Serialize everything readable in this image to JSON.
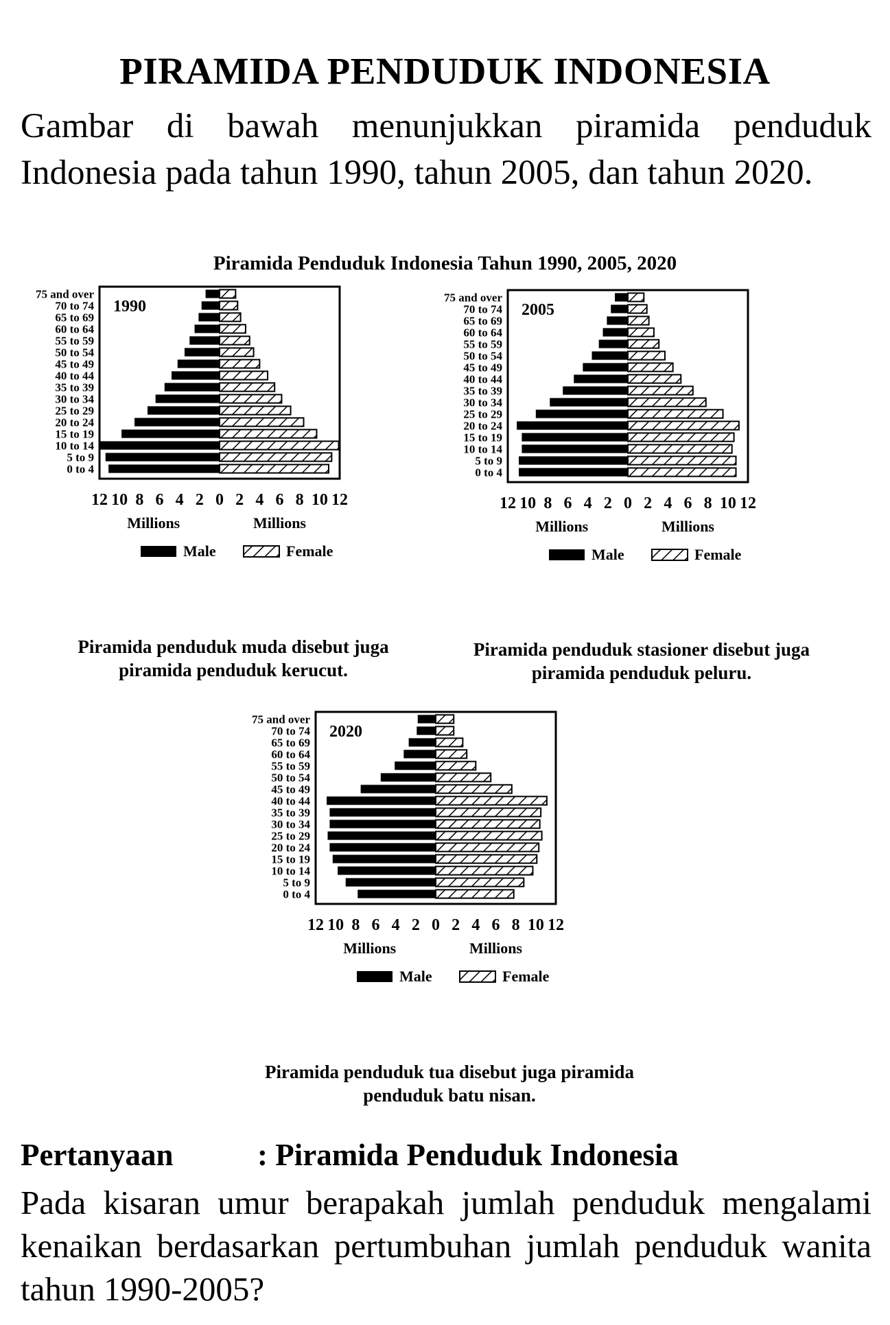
{
  "header": {
    "title": "PIRAMIDA PENDUDUK INDONESIA",
    "intro": "Gambar di bawah menunjukkan piramida penduduk Indonesia pada tahun 1990, tahun 2005, dan tahun 2020."
  },
  "figure": {
    "title": "Piramida Penduduk Indonesia Tahun 1990, 2005, 2020"
  },
  "colors": {
    "male": "#000000",
    "female_pattern": "hatched",
    "frame": "#000000"
  },
  "chart_data": [
    {
      "type": "bar",
      "orientation": "horizontal-pyramid",
      "title": "1990",
      "categories": [
        "0 to 4",
        "5 to 9",
        "10 to 14",
        "15 to 19",
        "20 to 24",
        "25 to 29",
        "30 to 34",
        "35 to 39",
        "40 to 44",
        "45 to 49",
        "50 to 54",
        "55 to 59",
        "60 to 64",
        "65 to 69",
        "70 to 74",
        "75 and over"
      ],
      "series": [
        {
          "name": "Male",
          "values": [
            11.1,
            11.4,
            11.9,
            9.8,
            8.5,
            7.2,
            6.4,
            5.5,
            4.8,
            4.2,
            3.5,
            3.0,
            2.5,
            2.1,
            1.8,
            1.4
          ]
        },
        {
          "name": "Female",
          "values": [
            10.9,
            11.2,
            11.9,
            9.7,
            8.4,
            7.1,
            6.2,
            5.5,
            4.8,
            4.0,
            3.4,
            3.0,
            2.6,
            2.1,
            1.8,
            1.6
          ]
        }
      ],
      "xticks": [
        "12",
        "10",
        "8",
        "6",
        "4",
        "2",
        "0",
        "2",
        "4",
        "6",
        "8",
        "10",
        "12"
      ],
      "xlabel_left": "Millions",
      "xlabel_right": "Millions",
      "xlim": [
        -12,
        12
      ],
      "legend": [
        "Male",
        "Female"
      ],
      "caption": "Piramida penduduk muda disebut juga piramida penduduk kerucut."
    },
    {
      "type": "bar",
      "orientation": "horizontal-pyramid",
      "title": "2005",
      "categories": [
        "0 to 4",
        "5 to 9",
        "10 to 14",
        "15 to 19",
        "20 to 24",
        "25 to 29",
        "30 to 34",
        "35 to 39",
        "40 to 44",
        "45 to 49",
        "50 to 54",
        "55 to 59",
        "60 to 64",
        "65 to 69",
        "70 to 74",
        "75 and over"
      ],
      "series": [
        {
          "name": "Male",
          "values": [
            10.9,
            10.9,
            10.6,
            10.6,
            11.1,
            9.2,
            7.8,
            6.5,
            5.4,
            4.5,
            3.6,
            2.9,
            2.5,
            2.1,
            1.7,
            1.3
          ]
        },
        {
          "name": "Female",
          "values": [
            10.8,
            10.8,
            10.4,
            10.6,
            11.1,
            9.5,
            7.8,
            6.5,
            5.3,
            4.5,
            3.7,
            3.1,
            2.6,
            2.1,
            1.9,
            1.6
          ]
        }
      ],
      "xticks": [
        "12",
        "10",
        "8",
        "6",
        "4",
        "2",
        "0",
        "2",
        "4",
        "6",
        "8",
        "10",
        "12"
      ],
      "xlabel_left": "Millions",
      "xlabel_right": "Millions",
      "xlim": [
        -12,
        12
      ],
      "legend": [
        "Male",
        "Female"
      ],
      "caption": "Piramida penduduk stasioner disebut juga piramida penduduk peluru."
    },
    {
      "type": "bar",
      "orientation": "horizontal-pyramid",
      "title": "2020",
      "categories": [
        "0 to 4",
        "5 to 9",
        "10 to 14",
        "15 to 19",
        "20 to 24",
        "25 to 29",
        "30 to 34",
        "35 to 39",
        "40 to 44",
        "45 to 49",
        "50 to 54",
        "55 to 59",
        "60 to 64",
        "65 to 69",
        "70 to 74",
        "75 and over"
      ],
      "series": [
        {
          "name": "Male",
          "values": [
            7.8,
            9.0,
            9.8,
            10.3,
            10.6,
            10.8,
            10.6,
            10.6,
            10.9,
            7.5,
            5.5,
            4.1,
            3.2,
            2.7,
            1.9,
            1.8
          ]
        },
        {
          "name": "Female",
          "values": [
            7.8,
            8.8,
            9.7,
            10.1,
            10.3,
            10.6,
            10.4,
            10.5,
            11.1,
            7.6,
            5.5,
            4.0,
            3.1,
            2.7,
            1.8,
            1.8
          ]
        }
      ],
      "xticks": [
        "12",
        "10",
        "8",
        "6",
        "4",
        "2",
        "0",
        "2",
        "4",
        "6",
        "8",
        "10",
        "12"
      ],
      "xlabel_left": "Millions",
      "xlabel_right": "Millions",
      "xlim": [
        -12,
        12
      ],
      "legend": [
        "Male",
        "Female"
      ],
      "caption": "Piramida penduduk tua disebut juga piramida penduduk batu nisan."
    }
  ],
  "question": {
    "label": "Pertanyaan",
    "heading": ": Piramida Penduduk Indonesia",
    "text": "Pada kisaran umur berapakah jumlah penduduk mengalami kenaikan berdasarkan pertumbuhan jumlah penduduk wanita tahun 1990-2005?"
  }
}
